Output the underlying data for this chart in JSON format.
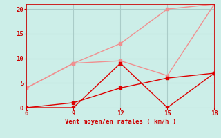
{
  "x": [
    6,
    9,
    12,
    15,
    18
  ],
  "line_pink1_y": [
    4,
    9,
    13,
    20,
    21
  ],
  "line_pink2_y": [
    4,
    9,
    9.5,
    6.5,
    21
  ],
  "line_red1_y": [
    0,
    0,
    9,
    0,
    7
  ],
  "line_red2_y": [
    0,
    1,
    4,
    6,
    7
  ],
  "line_pink1_color": "#f09090",
  "line_pink2_color": "#f09090",
  "line_red1_color": "#dd0000",
  "line_red2_color": "#dd0000",
  "bg_color": "#cceee8",
  "grid_color": "#aaccc8",
  "xlabel": "Vent moyen/en rafales ( km/h )",
  "xlabel_color": "#cc0000",
  "tick_color": "#cc0000",
  "xlim": [
    6,
    18
  ],
  "ylim": [
    0,
    21
  ],
  "xticks": [
    6,
    9,
    12,
    15,
    18
  ],
  "yticks": [
    0,
    5,
    10,
    15,
    20
  ],
  "markersize": 3
}
